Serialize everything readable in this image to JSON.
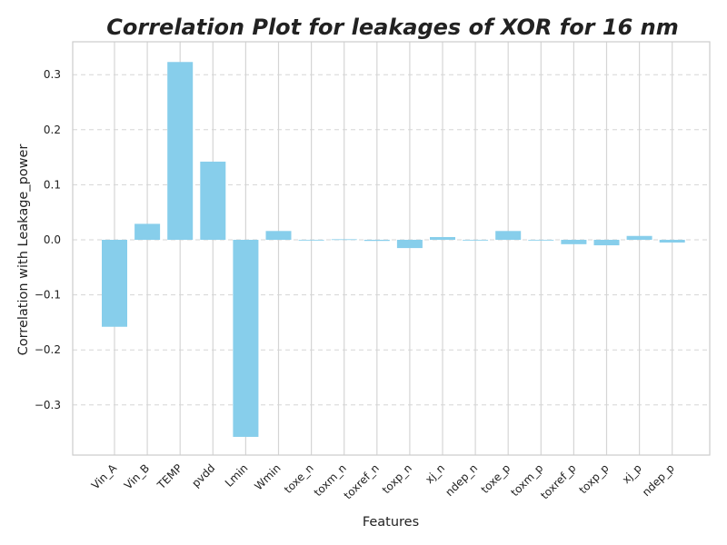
{
  "chart_data": {
    "type": "bar",
    "title": "Correlation Plot for leakages of XOR for 16 nm",
    "xlabel": "Features",
    "ylabel": "Correlation with Leakage_power",
    "categories": [
      "Vin_A",
      "Vin_B",
      "TEMP",
      "pvdd",
      "Lmin",
      "Wmin",
      "toxe_n",
      "toxm_n",
      "toxref_n",
      "toxp_n",
      "xj_n",
      "ndep_n",
      "toxe_p",
      "toxm_p",
      "toxref_p",
      "toxp_p",
      "xj_p",
      "ndep_p"
    ],
    "values": [
      -0.158,
      0.029,
      0.323,
      0.142,
      -0.358,
      0.016,
      -0.001,
      0.001,
      -0.002,
      -0.015,
      0.005,
      -0.001,
      0.016,
      -0.001,
      -0.008,
      -0.01,
      0.007,
      -0.005
    ],
    "ylim": [
      -0.4,
      0.36
    ],
    "yticks": [
      -0.3,
      -0.2,
      -0.1,
      0.0,
      0.1,
      0.2,
      0.3
    ],
    "ytick_labels": [
      "−0.3",
      "−0.2",
      "−0.1",
      "0.0",
      "0.1",
      "0.2",
      "0.3"
    ],
    "bar_color": "#87CEEB",
    "grid": true,
    "grid_style": "dashed"
  }
}
